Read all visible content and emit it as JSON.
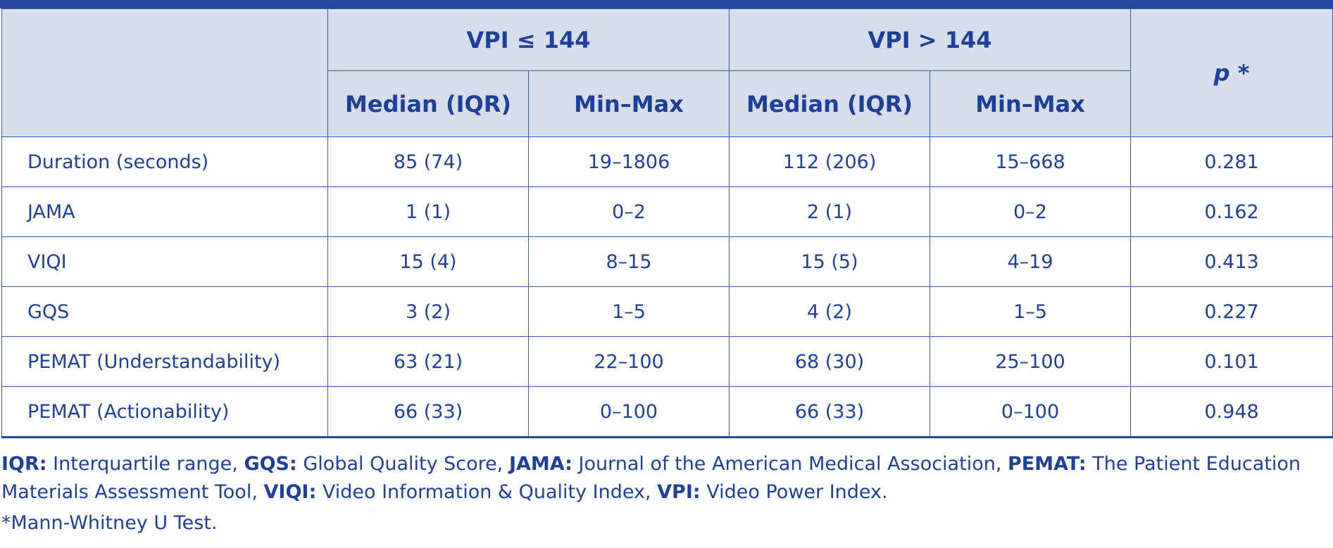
{
  "table": {
    "group_headers": [
      "VPI ≤ 144",
      "VPI > 144"
    ],
    "sub_headers": [
      "Median (IQR)",
      "Min–Max",
      "Median (IQR)",
      "Min–Max"
    ],
    "p_header": "p *",
    "rows": [
      {
        "label": "Duration (seconds)",
        "cells": [
          "85 (74)",
          "19–1806",
          "112 (206)",
          "15–668",
          "0.281"
        ]
      },
      {
        "label": "JAMA",
        "cells": [
          "1 (1)",
          "0–2",
          "2 (1)",
          "0–2",
          "0.162"
        ]
      },
      {
        "label": "VIQI",
        "cells": [
          "15 (4)",
          "8–15",
          "15 (5)",
          "4–19",
          "0.413"
        ]
      },
      {
        "label": "GQS",
        "cells": [
          "3 (2)",
          "1–5",
          "4 (2)",
          "1–5",
          "0.227"
        ]
      },
      {
        "label": "PEMAT (Understandability)",
        "cells": [
          "63 (21)",
          "22–100",
          "68 (30)",
          "25–100",
          "0.101"
        ]
      },
      {
        "label": "PEMAT (Actionability)",
        "cells": [
          "66 (33)",
          "0–100",
          "66 (33)",
          "0–100",
          "0.948"
        ]
      }
    ]
  },
  "notes": {
    "abbrev": [
      {
        "term": "IQR:",
        "def": " Interquartile range, "
      },
      {
        "term": "GQS:",
        "def": " Global Quality Score, "
      },
      {
        "term": "JAMA:",
        "def": " Journal of the American Medical Association, "
      },
      {
        "term": "PEMAT:",
        "def": " The Patient Education Materials Assessment Tool, "
      },
      {
        "term": "VIQI:",
        "def": " Video Information & Quality Index, "
      },
      {
        "term": "VPI:",
        "def": " Video Power Index."
      }
    ],
    "footnote": "*Mann-Whitney U Test."
  },
  "colors": {
    "accent": "#2346a0",
    "header_bg": "#d6deec",
    "text": "#1f3f98"
  }
}
